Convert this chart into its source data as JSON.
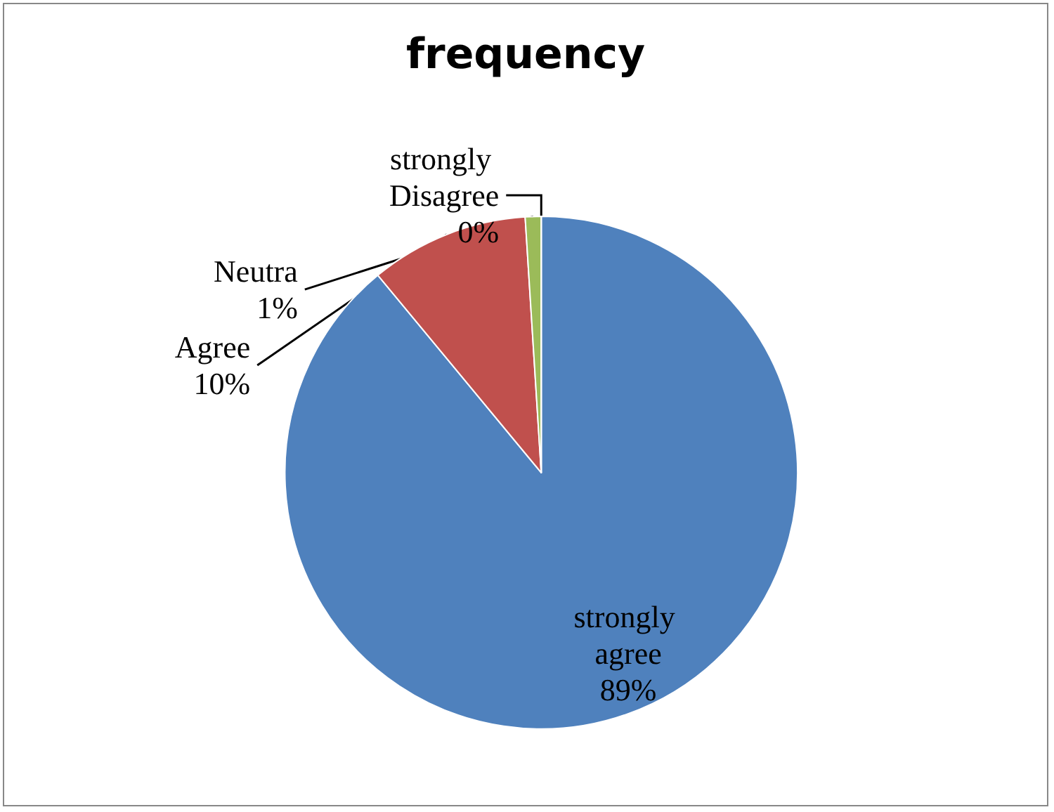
{
  "chart_data": {
    "type": "pie",
    "title": "frequency",
    "categories": [
      "strongly agree",
      "Agree",
      "Neutra",
      "strongly Disagree"
    ],
    "values": [
      89,
      10,
      1,
      0
    ],
    "colors": [
      "#4f81bd",
      "#c0504d",
      "#9bbb59",
      "#8064a2"
    ],
    "value_labels": [
      "89%",
      "10%",
      "1%",
      "0%"
    ],
    "legend": false
  }
}
